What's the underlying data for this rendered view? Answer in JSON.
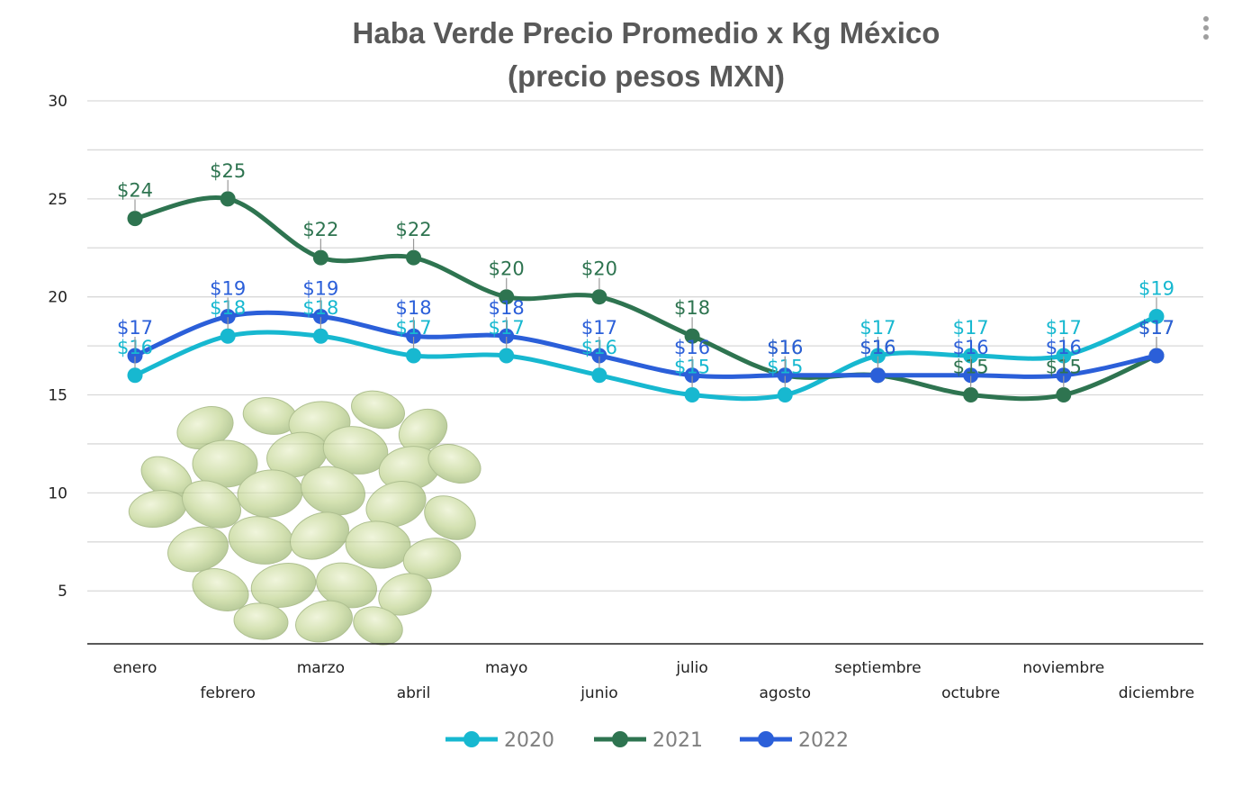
{
  "chart_data": {
    "type": "line",
    "title": [
      "Haba Verde Precio Promedio x Kg México",
      "(precio pesos MXN)"
    ],
    "xlabel": "",
    "ylabel": "",
    "ylim": [
      2.3,
      30
    ],
    "yticks": [
      5,
      10,
      15,
      20,
      25,
      30
    ],
    "categories": [
      "enero",
      "febrero",
      "marzo",
      "abril",
      "mayo",
      "junio",
      "julio",
      "agosto",
      "septiembre",
      "octubre",
      "noviembre",
      "diciembre"
    ],
    "label_prefix": "$",
    "legend_position": "bottom",
    "series": [
      {
        "name": "2020",
        "color": "#17b8d0",
        "values": [
          16,
          18,
          18,
          17,
          17,
          16,
          15,
          15,
          17,
          17,
          17,
          19
        ]
      },
      {
        "name": "2021",
        "color": "#2e7450",
        "values": [
          24,
          25,
          22,
          22,
          20,
          20,
          18,
          16,
          16,
          15,
          15,
          17
        ]
      },
      {
        "name": "2022",
        "color": "#2b5fd9",
        "values": [
          17,
          19,
          19,
          18,
          18,
          17,
          16,
          16,
          16,
          16,
          16,
          17
        ]
      }
    ]
  },
  "menu_icon": "kebab-menu-icon",
  "decor_image": "fava-beans-image"
}
